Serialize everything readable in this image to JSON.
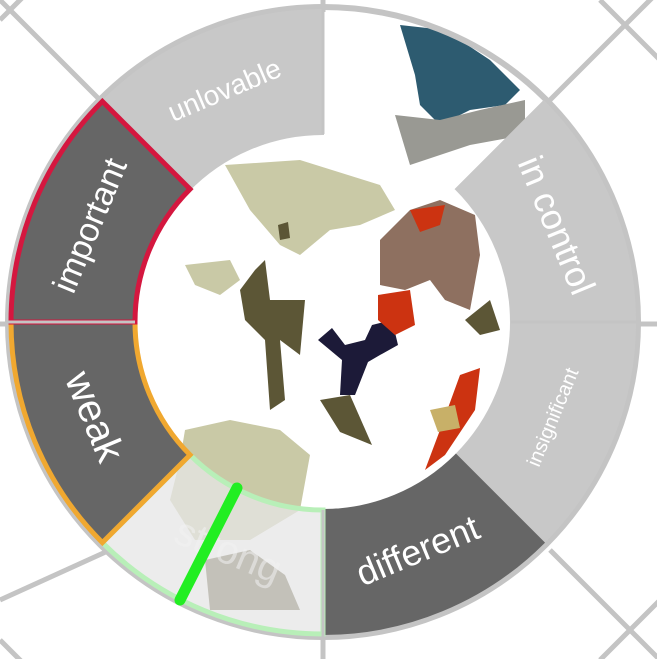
{
  "wheel": {
    "segments": [
      {
        "id": "unlovable",
        "label": "unlovable",
        "fill": "#c8c8c8",
        "border": "#c8c8c8",
        "selected": false
      },
      {
        "id": "in-control",
        "label": "in control",
        "fill": "#c8c8c8",
        "border": "#c8c8c8",
        "selected": false
      },
      {
        "id": "insignificant",
        "label": "insignificant",
        "fill": "#c8c8c8",
        "border": "#c8c8c8",
        "selected": false
      },
      {
        "id": "different",
        "label": "different",
        "fill": "#666666",
        "border": "#666666",
        "selected": false
      },
      {
        "id": "strong",
        "label": "strong",
        "fill": "#e6e6e6",
        "border": "#b8efb8",
        "selected": true
      },
      {
        "id": "weak",
        "label": "weak",
        "fill": "#666666",
        "border": "#f0a830",
        "selected": false
      },
      {
        "id": "important",
        "label": "important",
        "fill": "#666666",
        "border": "#d4173f",
        "selected": false
      }
    ],
    "pointer_color": "#22ee22",
    "frame_color": "#c4c4c4"
  },
  "artwork": {
    "palette": [
      "#c9c9a6",
      "#5c5636",
      "#2d5b70",
      "#8e7060",
      "#cc3311",
      "#1c1a38",
      "#999993",
      "#c8b068"
    ]
  }
}
